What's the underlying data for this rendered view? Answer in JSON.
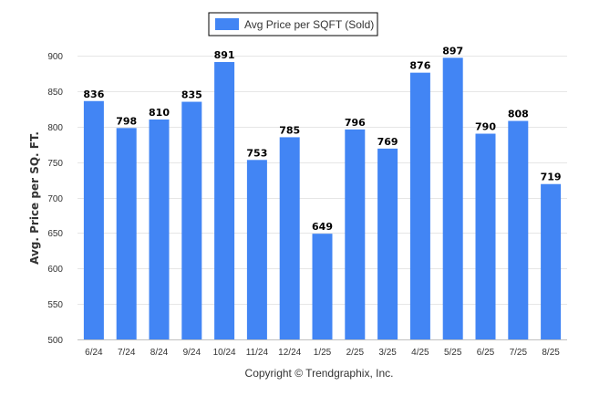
{
  "chart_data": {
    "type": "bar",
    "ylabel": "Avg. Price per SQ. FT.",
    "xlabel": "",
    "ylim": [
      500,
      900
    ],
    "yticks": [
      500,
      550,
      600,
      650,
      700,
      750,
      800,
      850,
      900
    ],
    "grid": true,
    "legend_position": "top-center",
    "categories": [
      "6/24",
      "7/24",
      "8/24",
      "9/24",
      "10/24",
      "11/24",
      "12/24",
      "1/25",
      "2/25",
      "3/25",
      "4/25",
      "5/25",
      "6/25",
      "7/25",
      "8/25"
    ],
    "series": [
      {
        "name": "Avg Price per SQFT (Sold)",
        "color": "#4285f4",
        "values": [
          836,
          798,
          810,
          835,
          891,
          753,
          785,
          649,
          796,
          769,
          876,
          897,
          790,
          808,
          719
        ]
      }
    ]
  },
  "footer": {
    "copyright": "Copyright © Trendgraphix, Inc."
  },
  "colors": {
    "bar": "#4285f4",
    "grid": "#e6e6e6",
    "axis": "#c0c0c0"
  }
}
